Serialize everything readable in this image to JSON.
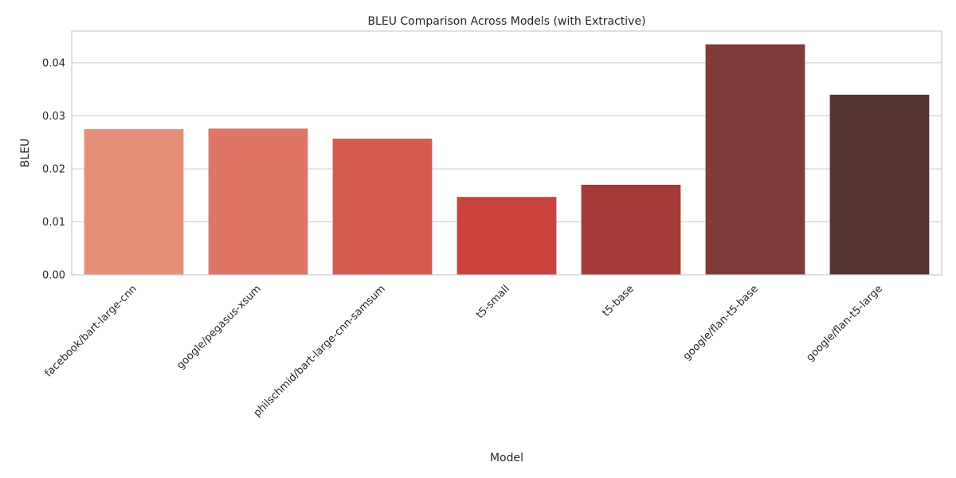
{
  "chart_data": {
    "type": "bar",
    "title": "BLEU Comparison Across Models (with Extractive)",
    "xlabel": "Model",
    "ylabel": "BLEU",
    "categories": [
      "facebook/bart-large-cnn",
      "google/pegasus-xsum",
      "philschmid/bart-large-cnn-samsum",
      "t5-small",
      "t5-base",
      "google/flan-t5-base",
      "google/flan-t5-large"
    ],
    "values": [
      0.0275,
      0.0276,
      0.0257,
      0.0147,
      0.017,
      0.0435,
      0.034
    ],
    "colors": [
      "#e58f7b",
      "#df7567",
      "#d55b50",
      "#c9423d",
      "#a63a38",
      "#7e3b38",
      "#583535"
    ],
    "ylim": [
      0,
      0.046
    ],
    "yticks": [
      "0.00",
      "0.01",
      "0.02",
      "0.03",
      "0.04"
    ],
    "ytick_values": [
      0,
      0.01,
      0.02,
      0.03,
      0.04
    ],
    "grid": true,
    "legend": "none"
  }
}
